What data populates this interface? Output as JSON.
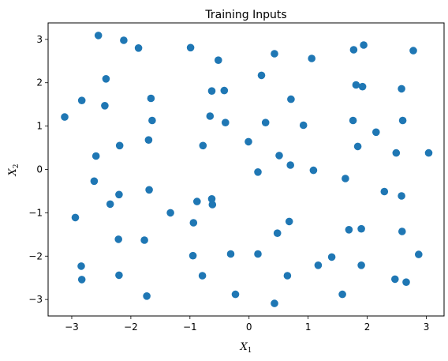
{
  "chart_data": {
    "type": "scatter",
    "title": "Training Inputs",
    "xlabel": {
      "var": "X",
      "sub": "1"
    },
    "ylabel": {
      "var": "X",
      "sub": "2"
    },
    "xlim": [
      -3.4,
      3.3
    ],
    "ylim": [
      -3.38,
      3.38
    ],
    "xticks": [
      -3,
      -2,
      -1,
      0,
      1,
      2,
      3
    ],
    "xtick_labels": [
      "−3",
      "−2",
      "−1",
      "0",
      "1",
      "2",
      "3"
    ],
    "yticks": [
      -3,
      -2,
      -1,
      0,
      1,
      2,
      3
    ],
    "ytick_labels": [
      "−3",
      "−2",
      "−1",
      "0",
      "1",
      "2",
      "3"
    ],
    "grid": false,
    "marker_color": "#1f77b4",
    "points": [
      [
        -2.55,
        3.09
      ],
      [
        -2.12,
        2.98
      ],
      [
        -1.87,
        2.8
      ],
      [
        -0.99,
        2.81
      ],
      [
        -0.52,
        2.52
      ],
      [
        0.43,
        2.67
      ],
      [
        1.06,
        2.56
      ],
      [
        1.77,
        2.76
      ],
      [
        1.94,
        2.87
      ],
      [
        2.78,
        2.74
      ],
      [
        -2.42,
        2.09
      ],
      [
        -2.83,
        1.59
      ],
      [
        -2.44,
        1.47
      ],
      [
        -1.66,
        1.64
      ],
      [
        -0.63,
        1.81
      ],
      [
        -0.42,
        1.82
      ],
      [
        0.21,
        2.17
      ],
      [
        0.71,
        1.62
      ],
      [
        1.81,
        1.95
      ],
      [
        1.92,
        1.91
      ],
      [
        2.58,
        1.86
      ],
      [
        -3.12,
        1.21
      ],
      [
        -1.64,
        1.13
      ],
      [
        -0.66,
        1.23
      ],
      [
        -0.4,
        1.08
      ],
      [
        0.28,
        1.08
      ],
      [
        0.92,
        1.02
      ],
      [
        1.76,
        1.13
      ],
      [
        2.15,
        0.86
      ],
      [
        2.6,
        1.13
      ],
      [
        -2.59,
        0.31
      ],
      [
        -2.19,
        0.55
      ],
      [
        -1.7,
        0.68
      ],
      [
        -0.78,
        0.55
      ],
      [
        -0.01,
        0.64
      ],
      [
        0.51,
        0.32
      ],
      [
        0.7,
        0.1
      ],
      [
        1.84,
        0.53
      ],
      [
        2.49,
        0.38
      ],
      [
        3.04,
        0.38
      ],
      [
        -2.62,
        -0.27
      ],
      [
        -2.35,
        -0.8
      ],
      [
        -2.2,
        -0.58
      ],
      [
        -1.69,
        -0.47
      ],
      [
        -1.33,
        -1.0
      ],
      [
        -0.88,
        -0.74
      ],
      [
        -0.63,
        -0.68
      ],
      [
        -0.62,
        -0.81
      ],
      [
        0.15,
        -0.06
      ],
      [
        1.09,
        -0.02
      ],
      [
        1.63,
        -0.21
      ],
      [
        2.29,
        -0.51
      ],
      [
        2.58,
        -0.61
      ],
      [
        -2.94,
        -1.11
      ],
      [
        -0.94,
        -1.23
      ],
      [
        0.68,
        -1.2
      ],
      [
        -2.21,
        -1.61
      ],
      [
        -1.77,
        -1.63
      ],
      [
        -0.95,
        -1.99
      ],
      [
        -0.31,
        -1.95
      ],
      [
        0.15,
        -1.95
      ],
      [
        0.48,
        -1.47
      ],
      [
        1.69,
        -1.39
      ],
      [
        1.9,
        -1.37
      ],
      [
        2.59,
        -1.43
      ],
      [
        -2.84,
        -2.23
      ],
      [
        -2.83,
        -2.54
      ],
      [
        -2.2,
        -2.44
      ],
      [
        -0.79,
        -2.45
      ],
      [
        1.17,
        -2.21
      ],
      [
        1.4,
        -2.02
      ],
      [
        1.9,
        -2.21
      ],
      [
        2.87,
        -1.96
      ],
      [
        -1.73,
        -2.92
      ],
      [
        -0.23,
        -2.88
      ],
      [
        0.65,
        -2.45
      ],
      [
        0.43,
        -3.09
      ],
      [
        1.58,
        -2.88
      ],
      [
        2.47,
        -2.53
      ],
      [
        2.66,
        -2.6
      ]
    ]
  }
}
